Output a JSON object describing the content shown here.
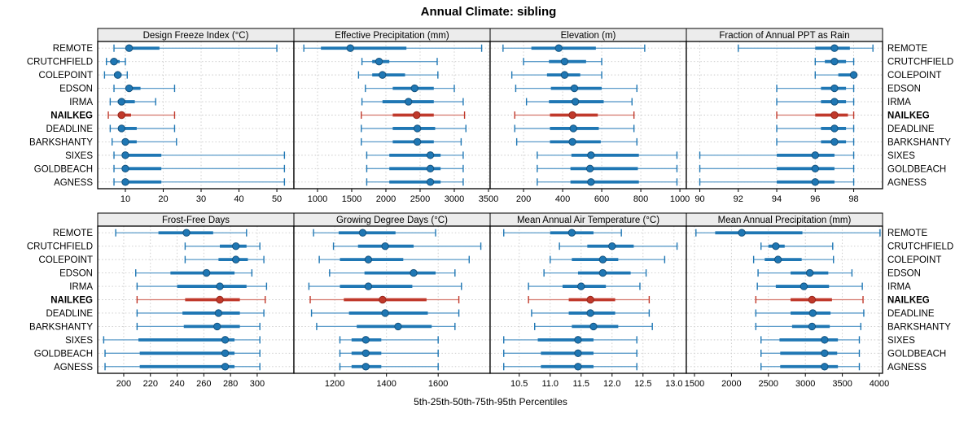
{
  "figure": {
    "title": "Annual Climate: sibling",
    "xlabel": "5th-25th-50th-75th-95th Percentiles",
    "site_order": [
      "REMOTE",
      "CRUTCHFIELD",
      "COLEPOINT",
      "EDSON",
      "IRMA",
      "NAILKEG",
      "DEADLINE",
      "BARKSHANTY",
      "SIXES",
      "GOLDBEACH",
      "AGNESS"
    ],
    "highlight_site": "NAILKEG",
    "percentile_labels": [
      "5th",
      "25th",
      "50th",
      "75th",
      "95th"
    ],
    "colors": {
      "blue_main": "#1f77b4",
      "blue_light": "#5b9bc9",
      "blue_dark": "#15527d",
      "red_main": "#c0392b",
      "red_light": "#d4756a",
      "red_dark": "#96261b",
      "grid": "#c9c9c9",
      "strip_bg": "#ececec",
      "border": "#000000",
      "text": "#000000"
    }
  },
  "chart_data": [
    {
      "type": "dotplot",
      "title": "Design Freeze Index (°C)",
      "row": 0,
      "col": 0,
      "xlim": [
        2.7,
        54.5
      ],
      "tick_values": [
        10,
        20,
        30,
        40,
        50
      ],
      "tick_labels": [
        "10",
        "20",
        "30",
        "40",
        "50"
      ],
      "series": [
        {
          "site": "REMOTE",
          "percentiles": [
            7,
            10,
            11,
            19,
            50
          ]
        },
        {
          "site": "CRUTCHFIELD",
          "percentiles": [
            5,
            6,
            7,
            8.5,
            10
          ]
        },
        {
          "site": "COLEPOINT",
          "percentiles": [
            4.5,
            7,
            8,
            9,
            10.5
          ]
        },
        {
          "site": "EDSON",
          "percentiles": [
            7,
            10,
            11,
            14,
            23
          ]
        },
        {
          "site": "IRMA",
          "percentiles": [
            6,
            8,
            9,
            12.5,
            18
          ]
        },
        {
          "site": "NAILKEG",
          "percentiles": [
            5.5,
            8,
            9,
            11.5,
            23
          ]
        },
        {
          "site": "DEADLINE",
          "percentiles": [
            6,
            8.5,
            9,
            13,
            23
          ]
        },
        {
          "site": "BARKSHANTY",
          "percentiles": [
            6.5,
            9.5,
            10,
            13,
            23.5
          ]
        },
        {
          "site": "SIXES",
          "percentiles": [
            7,
            9.5,
            10,
            19.5,
            52
          ]
        },
        {
          "site": "GOLDBEACH",
          "percentiles": [
            7,
            9.5,
            10,
            19.5,
            52
          ]
        },
        {
          "site": "AGNESS",
          "percentiles": [
            7,
            9.5,
            10,
            19.5,
            52
          ]
        }
      ]
    },
    {
      "type": "dotplot",
      "title": "Effective Precipitation (mm)",
      "row": 0,
      "col": 1,
      "xlim": [
        655,
        3524
      ],
      "tick_values": [
        1000,
        1500,
        2000,
        2500,
        3000,
        3500
      ],
      "tick_labels": [
        "1000",
        "1500",
        "2000",
        "2500",
        "3000",
        "3500"
      ],
      "series": [
        {
          "site": "REMOTE",
          "percentiles": [
            800,
            1050,
            1480,
            2300,
            3400
          ]
        },
        {
          "site": "CRUTCHFIELD",
          "percentiles": [
            1650,
            1800,
            1900,
            2050,
            2750
          ]
        },
        {
          "site": "COLEPOINT",
          "percentiles": [
            1600,
            1800,
            1950,
            2280,
            2760
          ]
        },
        {
          "site": "EDSON",
          "percentiles": [
            1700,
            2100,
            2420,
            2700,
            3000
          ]
        },
        {
          "site": "IRMA",
          "percentiles": [
            1650,
            1950,
            2330,
            2700,
            3130
          ]
        },
        {
          "site": "NAILKEG",
          "percentiles": [
            1640,
            2100,
            2450,
            2700,
            3150
          ]
        },
        {
          "site": "DEADLINE",
          "percentiles": [
            1640,
            2100,
            2460,
            2720,
            3170
          ]
        },
        {
          "site": "BARKSHANTY",
          "percentiles": [
            1640,
            2100,
            2460,
            2700,
            3100
          ]
        },
        {
          "site": "SIXES",
          "percentiles": [
            1720,
            2050,
            2650,
            2800,
            3130
          ]
        },
        {
          "site": "GOLDBEACH",
          "percentiles": [
            1720,
            2050,
            2650,
            2800,
            3130
          ]
        },
        {
          "site": "AGNESS",
          "percentiles": [
            1720,
            2050,
            2650,
            2800,
            3130
          ]
        }
      ]
    },
    {
      "type": "dotplot",
      "title": "Elevation (m)",
      "row": 0,
      "col": 2,
      "xlim": [
        29,
        1033
      ],
      "tick_values": [
        200,
        400,
        600,
        800,
        1000
      ],
      "tick_labels": [
        "200",
        "400",
        "600",
        "800",
        "1000"
      ],
      "series": [
        {
          "site": "REMOTE",
          "percentiles": [
            95,
            240,
            380,
            570,
            820
          ]
        },
        {
          "site": "CRUTCHFIELD",
          "percentiles": [
            200,
            330,
            410,
            520,
            600
          ]
        },
        {
          "site": "COLEPOINT",
          "percentiles": [
            140,
            320,
            410,
            490,
            600
          ]
        },
        {
          "site": "EDSON",
          "percentiles": [
            160,
            340,
            460,
            600,
            780
          ]
        },
        {
          "site": "IRMA",
          "percentiles": [
            215,
            330,
            465,
            610,
            755
          ]
        },
        {
          "site": "NAILKEG",
          "percentiles": [
            155,
            335,
            450,
            580,
            765
          ]
        },
        {
          "site": "DEADLINE",
          "percentiles": [
            155,
            335,
            455,
            585,
            765
          ]
        },
        {
          "site": "BARKSHANTY",
          "percentiles": [
            165,
            335,
            450,
            595,
            780
          ]
        },
        {
          "site": "SIXES",
          "percentiles": [
            270,
            445,
            545,
            790,
            985
          ]
        },
        {
          "site": "GOLDBEACH",
          "percentiles": [
            270,
            440,
            540,
            785,
            985
          ]
        },
        {
          "site": "AGNESS",
          "percentiles": [
            270,
            440,
            545,
            790,
            985
          ]
        }
      ]
    },
    {
      "type": "dotplot",
      "title": "Fraction of Annual PPT as Rain",
      "row": 0,
      "col": 3,
      "xlim": [
        89.3,
        99.5
      ],
      "tick_values": [
        90,
        92,
        94,
        96,
        98
      ],
      "tick_labels": [
        "90",
        "92",
        "94",
        "96",
        "98"
      ],
      "series": [
        {
          "site": "REMOTE",
          "percentiles": [
            92,
            96,
            97,
            97.8,
            99
          ]
        },
        {
          "site": "CRUTCHFIELD",
          "percentiles": [
            96,
            96.5,
            97,
            97.6,
            98
          ]
        },
        {
          "site": "COLEPOINT",
          "percentiles": [
            96,
            97.2,
            98,
            98,
            98
          ]
        },
        {
          "site": "EDSON",
          "percentiles": [
            94,
            96.3,
            97,
            97.6,
            98
          ]
        },
        {
          "site": "IRMA",
          "percentiles": [
            94,
            96.3,
            97,
            97.6,
            98
          ]
        },
        {
          "site": "NAILKEG",
          "percentiles": [
            94,
            96,
            97,
            97.7,
            98
          ]
        },
        {
          "site": "DEADLINE",
          "percentiles": [
            94,
            96.3,
            97,
            97.6,
            98
          ]
        },
        {
          "site": "BARKSHANTY",
          "percentiles": [
            94,
            96.3,
            97,
            97.6,
            98
          ]
        },
        {
          "site": "SIXES",
          "percentiles": [
            90,
            94,
            96,
            97,
            98
          ]
        },
        {
          "site": "GOLDBEACH",
          "percentiles": [
            90,
            94,
            96,
            97,
            98
          ]
        },
        {
          "site": "AGNESS",
          "percentiles": [
            90,
            94,
            96,
            97,
            98
          ]
        }
      ]
    },
    {
      "type": "dotplot",
      "title": "Frost-Free Days",
      "row": 1,
      "col": 0,
      "xlim": [
        180.5,
        327.5
      ],
      "tick_values": [
        200,
        220,
        240,
        260,
        280,
        300
      ],
      "tick_labels": [
        "200",
        "220",
        "240",
        "260",
        "280",
        "300"
      ],
      "series": [
        {
          "site": "REMOTE",
          "percentiles": [
            194,
            226,
            247,
            267,
            292
          ]
        },
        {
          "site": "CRUTCHFIELD",
          "percentiles": [
            246,
            272,
            284,
            292,
            302
          ]
        },
        {
          "site": "COLEPOINT",
          "percentiles": [
            246,
            271,
            284,
            293,
            305
          ]
        },
        {
          "site": "EDSON",
          "percentiles": [
            209,
            235,
            262,
            283,
            296
          ]
        },
        {
          "site": "IRMA",
          "percentiles": [
            210,
            240,
            272,
            292,
            307
          ]
        },
        {
          "site": "NAILKEG",
          "percentiles": [
            210,
            246,
            272,
            287,
            306
          ]
        },
        {
          "site": "DEADLINE",
          "percentiles": [
            210,
            244,
            271,
            287,
            305
          ]
        },
        {
          "site": "BARKSHANTY",
          "percentiles": [
            210,
            245,
            270,
            287,
            302
          ]
        },
        {
          "site": "SIXES",
          "percentiles": [
            185,
            211,
            276,
            283,
            302
          ]
        },
        {
          "site": "GOLDBEACH",
          "percentiles": [
            186,
            212,
            276,
            283,
            302
          ]
        },
        {
          "site": "AGNESS",
          "percentiles": [
            186,
            212,
            276,
            283,
            302
          ]
        }
      ]
    },
    {
      "type": "dotplot",
      "title": "Growing Degree Days (°C)",
      "row": 1,
      "col": 1,
      "xlim": [
        1042,
        1801
      ],
      "tick_values": [
        1200,
        1400,
        1600
      ],
      "tick_labels": [
        "1200",
        "1400",
        "1600"
      ],
      "series": [
        {
          "site": "REMOTE",
          "percentiles": [
            1118,
            1215,
            1308,
            1435,
            1590
          ]
        },
        {
          "site": "CRUTCHFIELD",
          "percentiles": [
            1195,
            1290,
            1395,
            1505,
            1765
          ]
        },
        {
          "site": "COLEPOINT",
          "percentiles": [
            1140,
            1220,
            1330,
            1465,
            1720
          ]
        },
        {
          "site": "EDSON",
          "percentiles": [
            1180,
            1315,
            1505,
            1590,
            1665
          ]
        },
        {
          "site": "IRMA",
          "percentiles": [
            1100,
            1220,
            1330,
            1500,
            1690
          ]
        },
        {
          "site": "NAILKEG",
          "percentiles": [
            1105,
            1235,
            1385,
            1555,
            1680
          ]
        },
        {
          "site": "DEADLINE",
          "percentiles": [
            1110,
            1255,
            1395,
            1560,
            1680
          ]
        },
        {
          "site": "BARKSHANTY",
          "percentiles": [
            1130,
            1285,
            1445,
            1575,
            1665
          ]
        },
        {
          "site": "SIXES",
          "percentiles": [
            1220,
            1265,
            1320,
            1380,
            1600
          ]
        },
        {
          "site": "GOLDBEACH",
          "percentiles": [
            1220,
            1265,
            1320,
            1380,
            1600
          ]
        },
        {
          "site": "AGNESS",
          "percentiles": [
            1220,
            1265,
            1320,
            1380,
            1600
          ]
        }
      ]
    },
    {
      "type": "dotplot",
      "title": "Mean Annual Air Temperature (°C)",
      "row": 1,
      "col": 2,
      "xlim": [
        10.03,
        13.2
      ],
      "tick_values": [
        10.5,
        11.0,
        11.5,
        12.0,
        12.5,
        13.0
      ],
      "tick_labels": [
        "10.5",
        "11.0",
        "11.5",
        "12.0",
        "12.5",
        "13.0"
      ],
      "series": [
        {
          "site": "REMOTE",
          "percentiles": [
            10.25,
            11.0,
            11.35,
            11.7,
            12.15
          ]
        },
        {
          "site": "CRUTCHFIELD",
          "percentiles": [
            11.15,
            11.6,
            12.0,
            12.35,
            13.05
          ]
        },
        {
          "site": "COLEPOINT",
          "percentiles": [
            11.0,
            11.35,
            11.85,
            12.1,
            12.85
          ]
        },
        {
          "site": "EDSON",
          "percentiles": [
            10.9,
            11.45,
            11.85,
            12.3,
            12.55
          ]
        },
        {
          "site": "IRMA",
          "percentiles": [
            10.65,
            11.2,
            11.5,
            11.9,
            12.45
          ]
        },
        {
          "site": "NAILKEG",
          "percentiles": [
            10.65,
            11.3,
            11.65,
            12.05,
            12.6
          ]
        },
        {
          "site": "DEADLINE",
          "percentiles": [
            10.7,
            11.3,
            11.65,
            12.05,
            12.6
          ]
        },
        {
          "site": "BARKSHANTY",
          "percentiles": [
            10.75,
            11.35,
            11.7,
            12.1,
            12.65
          ]
        },
        {
          "site": "SIXES",
          "percentiles": [
            10.25,
            10.8,
            11.45,
            11.7,
            12.4
          ]
        },
        {
          "site": "GOLDBEACH",
          "percentiles": [
            10.25,
            10.85,
            11.45,
            11.7,
            12.4
          ]
        },
        {
          "site": "AGNESS",
          "percentiles": [
            10.25,
            10.85,
            11.45,
            11.7,
            12.4
          ]
        }
      ]
    },
    {
      "type": "dotplot",
      "title": "Mean Annual Precipitation (mm)",
      "row": 1,
      "col": 3,
      "xlim": [
        1390,
        4044
      ],
      "tick_values": [
        1500,
        2000,
        2500,
        3000,
        3500,
        4000
      ],
      "tick_labels": [
        "1500",
        "2000",
        "2500",
        "3000",
        "3500",
        "4000"
      ],
      "series": [
        {
          "site": "REMOTE",
          "percentiles": [
            1520,
            1780,
            2140,
            2960,
            4010
          ]
        },
        {
          "site": "CRUTCHFIELD",
          "percentiles": [
            2400,
            2500,
            2600,
            2720,
            3370
          ]
        },
        {
          "site": "COLEPOINT",
          "percentiles": [
            2300,
            2450,
            2630,
            2950,
            3380
          ]
        },
        {
          "site": "EDSON",
          "percentiles": [
            2360,
            2800,
            3060,
            3310,
            3630
          ]
        },
        {
          "site": "IRMA",
          "percentiles": [
            2350,
            2600,
            2980,
            3320,
            3770
          ]
        },
        {
          "site": "NAILKEG",
          "percentiles": [
            2330,
            2800,
            3090,
            3360,
            3780
          ]
        },
        {
          "site": "DEADLINE",
          "percentiles": [
            2330,
            2800,
            3100,
            3340,
            3790
          ]
        },
        {
          "site": "BARKSHANTY",
          "percentiles": [
            2330,
            2820,
            3090,
            3330,
            3750
          ]
        },
        {
          "site": "SIXES",
          "percentiles": [
            2400,
            2650,
            3260,
            3440,
            3730
          ]
        },
        {
          "site": "GOLDBEACH",
          "percentiles": [
            2400,
            2660,
            3260,
            3430,
            3730
          ]
        },
        {
          "site": "AGNESS",
          "percentiles": [
            2400,
            2660,
            3260,
            3440,
            3730
          ]
        }
      ]
    }
  ]
}
